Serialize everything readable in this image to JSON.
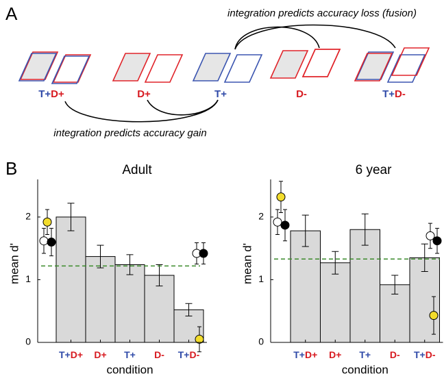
{
  "panel_labels": [
    "A",
    "B"
  ],
  "diagram": {
    "annotation_top": "integration predicts accuracy loss (fusion)",
    "annotation_bottom": "integration predicts accuracy gain",
    "labels": [
      [
        {
          "text": "T+",
          "color": "#2f4aa8"
        },
        {
          "text": "D+",
          "color": "#d7191f"
        }
      ],
      [
        {
          "text": "D+",
          "color": "#d7191f"
        }
      ],
      [
        {
          "text": "T+",
          "color": "#2f4aa8"
        }
      ],
      [
        {
          "text": "D-",
          "color": "#d7191f"
        }
      ],
      [
        {
          "text": "T+",
          "color": "#2f4aa8"
        },
        {
          "text": "D-",
          "color": "#d7191f"
        }
      ]
    ]
  },
  "chart_data": [
    {
      "type": "bar",
      "title": "Adult",
      "y_label": "mean d'",
      "x_label": "condition",
      "categories": [
        [
          {
            "text": "T+",
            "color": "#2f4aa8"
          },
          {
            "text": "D+",
            "color": "#d7191f"
          }
        ],
        [
          {
            "text": "D+",
            "color": "#d7191f"
          }
        ],
        [
          {
            "text": "T+",
            "color": "#2f4aa8"
          }
        ],
        [
          {
            "text": "D-",
            "color": "#d7191f"
          }
        ],
        [
          {
            "text": "T+",
            "color": "#2f4aa8"
          },
          {
            "text": "D-",
            "color": "#d7191f"
          }
        ]
      ],
      "values": [
        2.0,
        1.37,
        1.24,
        1.07,
        0.52
      ],
      "errors": [
        0.22,
        0.18,
        0.16,
        0.17,
        0.1
      ],
      "color": "#d9d9d9",
      "ylim": [
        0,
        2.6
      ],
      "yticks": [
        0,
        1,
        2
      ],
      "reference_line": 1.22,
      "reference_color": "#3a8a2a",
      "points": [
        {
          "side": "left",
          "fill": "#ffffff",
          "value": 1.62,
          "error": 0.2
        },
        {
          "side": "left",
          "fill": "#000000",
          "value": 1.6,
          "error": 0.22
        },
        {
          "side": "left",
          "fill": "#f2dc2c",
          "value": 1.92,
          "error": 0.2
        },
        {
          "side": "right",
          "fill": "#ffffff",
          "value": 1.42,
          "error": 0.17
        },
        {
          "side": "right",
          "fill": "#000000",
          "value": 1.42,
          "error": 0.17
        },
        {
          "side": "right",
          "fill": "#f2dc2c",
          "value": 0.05,
          "error": 0.2
        }
      ]
    },
    {
      "type": "bar",
      "title": "6 year",
      "y_label": "mean d'",
      "x_label": "condition",
      "categories": [
        [
          {
            "text": "T+",
            "color": "#2f4aa8"
          },
          {
            "text": "D+",
            "color": "#d7191f"
          }
        ],
        [
          {
            "text": "D+",
            "color": "#d7191f"
          }
        ],
        [
          {
            "text": "T+",
            "color": "#2f4aa8"
          }
        ],
        [
          {
            "text": "D-",
            "color": "#d7191f"
          }
        ],
        [
          {
            "text": "T+",
            "color": "#2f4aa8"
          },
          {
            "text": "D-",
            "color": "#d7191f"
          }
        ]
      ],
      "values": [
        1.78,
        1.27,
        1.8,
        0.92,
        1.35
      ],
      "errors": [
        0.25,
        0.18,
        0.25,
        0.15,
        0.22
      ],
      "color": "#d9d9d9",
      "ylim": [
        0,
        2.6
      ],
      "yticks": [
        0,
        1,
        2
      ],
      "reference_line": 1.33,
      "reference_color": "#3a8a2a",
      "points": [
        {
          "side": "left",
          "fill": "#ffffff",
          "value": 1.92,
          "error": 0.2
        },
        {
          "side": "left",
          "fill": "#000000",
          "value": 1.87,
          "error": 0.25
        },
        {
          "side": "left",
          "fill": "#f2dc2c",
          "value": 2.32,
          "error": 0.25
        },
        {
          "side": "right",
          "fill": "#ffffff",
          "value": 1.7,
          "error": 0.2
        },
        {
          "side": "right",
          "fill": "#000000",
          "value": 1.62,
          "error": 0.2
        },
        {
          "side": "right",
          "fill": "#f2dc2c",
          "value": 0.43,
          "error": 0.3
        }
      ]
    }
  ]
}
